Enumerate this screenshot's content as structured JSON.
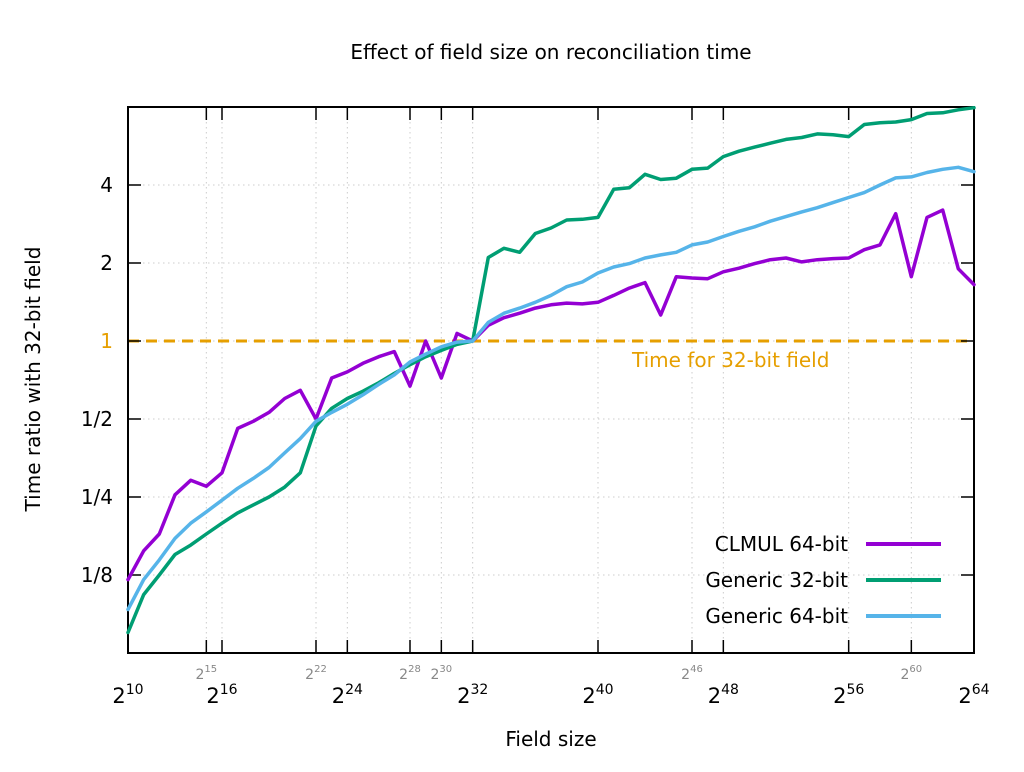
{
  "title": "Effect of field size on reconciliation time",
  "x_axis_label": "Field size",
  "y_axis_label": "Time ratio with 32-bit field",
  "annotation": {
    "text": "Time for 32-bit field",
    "color": "#e69f00"
  },
  "legend": {
    "position": "inside-bottom-right",
    "entries": [
      "CLMUL 64-bit",
      "Generic 32-bit",
      "Generic 64-bit"
    ]
  },
  "colors": {
    "clmul_64": "#9400d3",
    "generic_32": "#009e73",
    "generic_64": "#56b4e9",
    "reference": "#e69f00",
    "grid": "#cccccc",
    "axis": "#000000",
    "minor_label": "#888888"
  },
  "chart_data": {
    "type": "line",
    "x_scale": "log2",
    "y_scale": "log2",
    "grid": true,
    "x_range_exponents": [
      10,
      64
    ],
    "y_range": [
      0.0625,
      8
    ],
    "x_major_tick_exponents": [
      10,
      16,
      24,
      32,
      40,
      48,
      56,
      64
    ],
    "x_minor_tick_exponents": [
      15,
      22,
      28,
      30,
      46,
      60
    ],
    "x_grid_exponents": [
      15,
      16,
      22,
      24,
      28,
      30,
      32,
      40,
      46,
      48,
      56,
      60
    ],
    "y_tick_labels": [
      "4",
      "2",
      "1",
      "1/2",
      "1/4",
      "1/8"
    ],
    "y_tick_values": [
      4,
      2,
      1,
      0.5,
      0.25,
      0.125
    ],
    "y_tick_label_colors": [
      "#000000",
      "#000000",
      "#e69f00",
      "#000000",
      "#000000",
      "#000000"
    ],
    "reference_line": {
      "value": 1,
      "label": "Time for 32-bit field",
      "color": "#e69f00",
      "style": "dashed"
    },
    "x_exponents": [
      10,
      11,
      12,
      13,
      14,
      15,
      16,
      17,
      18,
      19,
      20,
      21,
      22,
      23,
      24,
      25,
      26,
      27,
      28,
      29,
      30,
      31,
      32,
      33,
      34,
      35,
      36,
      37,
      38,
      39,
      40,
      41,
      42,
      43,
      44,
      45,
      46,
      47,
      48,
      49,
      50,
      51,
      52,
      53,
      54,
      55,
      56,
      57,
      58,
      59,
      60,
      61,
      62,
      63,
      64
    ],
    "series": [
      {
        "name": "CLMUL 64-bit",
        "color": "#9400d3",
        "values": [
          0.12,
          0.155,
          0.18,
          0.255,
          0.29,
          0.275,
          0.31,
          0.46,
          0.49,
          0.53,
          0.6,
          0.645,
          0.5,
          0.72,
          0.76,
          0.82,
          0.87,
          0.91,
          0.67,
          1.0,
          0.72,
          1.07,
          1.0,
          1.15,
          1.23,
          1.28,
          1.34,
          1.38,
          1.4,
          1.39,
          1.41,
          1.5,
          1.6,
          1.68,
          1.26,
          1.77,
          1.75,
          1.74,
          1.85,
          1.91,
          1.99,
          2.06,
          2.09,
          2.02,
          2.06,
          2.08,
          2.09,
          2.25,
          2.35,
          3.1,
          1.77,
          3.0,
          3.2,
          1.9,
          1.65
        ]
      },
      {
        "name": "Generic 32-bit",
        "color": "#009e73",
        "values": [
          0.075,
          0.105,
          0.125,
          0.15,
          0.163,
          0.18,
          0.198,
          0.217,
          0.233,
          0.25,
          0.273,
          0.31,
          0.47,
          0.55,
          0.6,
          0.64,
          0.69,
          0.75,
          0.81,
          0.87,
          0.92,
          0.97,
          1.0,
          2.1,
          2.28,
          2.2,
          2.6,
          2.73,
          2.93,
          2.95,
          3.0,
          3.85,
          3.9,
          4.4,
          4.2,
          4.25,
          4.6,
          4.65,
          5.15,
          5.4,
          5.6,
          5.8,
          6.0,
          6.1,
          6.3,
          6.25,
          6.15,
          6.85,
          6.95,
          7.0,
          7.15,
          7.55,
          7.6,
          7.8,
          7.95
        ]
      },
      {
        "name": "Generic 64-bit",
        "color": "#56b4e9",
        "values": [
          0.092,
          0.12,
          0.143,
          0.173,
          0.198,
          0.219,
          0.243,
          0.27,
          0.295,
          0.325,
          0.37,
          0.42,
          0.49,
          0.53,
          0.57,
          0.62,
          0.68,
          0.74,
          0.83,
          0.89,
          0.95,
          0.99,
          1.0,
          1.18,
          1.28,
          1.34,
          1.41,
          1.5,
          1.62,
          1.69,
          1.83,
          1.93,
          1.99,
          2.09,
          2.15,
          2.2,
          2.35,
          2.41,
          2.53,
          2.65,
          2.76,
          2.9,
          3.02,
          3.15,
          3.27,
          3.42,
          3.58,
          3.74,
          4.0,
          4.26,
          4.3,
          4.47,
          4.6,
          4.68,
          4.5
        ]
      }
    ]
  }
}
